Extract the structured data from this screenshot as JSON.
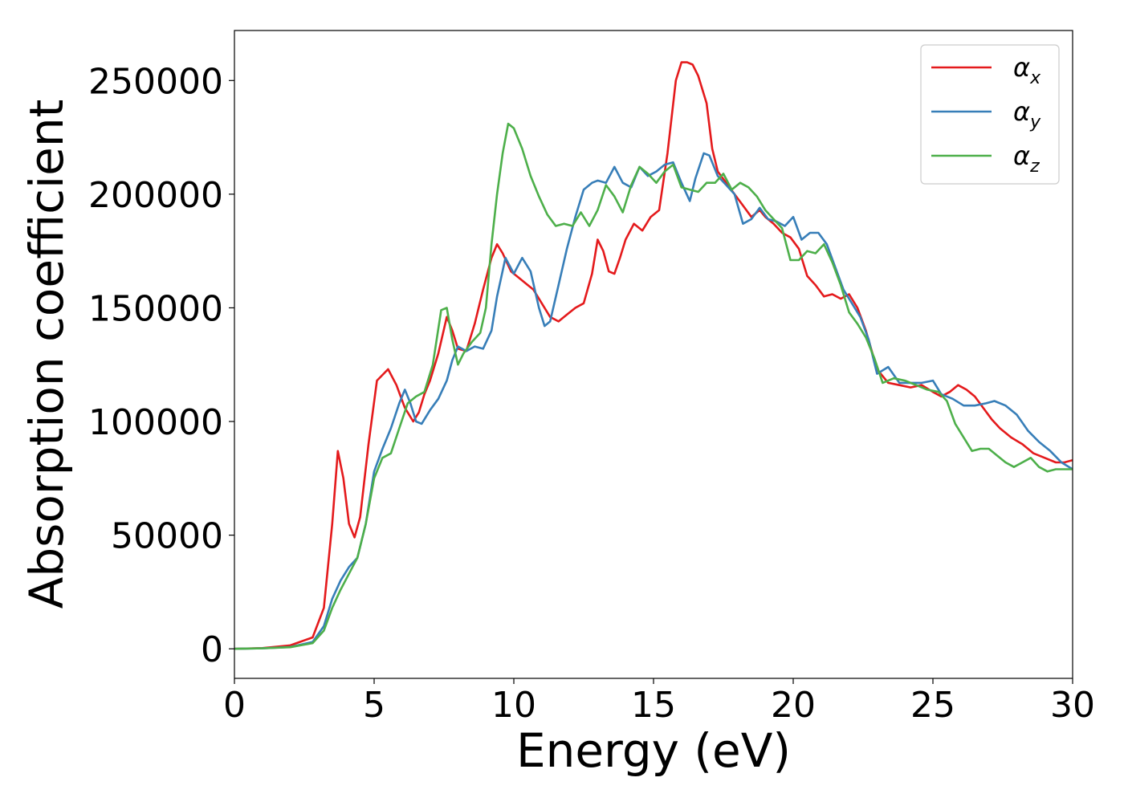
{
  "chart_data": {
    "type": "line",
    "title": "",
    "xlabel": "Energy (eV)",
    "ylabel": "Absorption coefficient",
    "xlim": [
      0,
      30
    ],
    "ylim": [
      -13000,
      272000
    ],
    "xticks": [
      0,
      5,
      10,
      15,
      20,
      25,
      30
    ],
    "xtick_labels": [
      "0",
      "5",
      "10",
      "15",
      "20",
      "25",
      "30"
    ],
    "yticks": [
      0,
      50000,
      100000,
      150000,
      200000,
      250000
    ],
    "ytick_labels": [
      "0",
      "50000",
      "100000",
      "150000",
      "200000",
      "250000"
    ],
    "grid": false,
    "legend_position": "top-right",
    "series": [
      {
        "name": "αx",
        "symbol": "α",
        "subscript": "x",
        "color": "#e41a1c",
        "x": [
          0,
          1,
          2,
          2.8,
          3.2,
          3.5,
          3.7,
          3.9,
          4.1,
          4.3,
          4.5,
          4.8,
          5.1,
          5.5,
          5.8,
          6.1,
          6.4,
          6.6,
          6.8,
          7.0,
          7.3,
          7.6,
          7.8,
          8.0,
          8.3,
          8.6,
          8.9,
          9.2,
          9.4,
          9.6,
          9.9,
          10.2,
          10.5,
          10.7,
          11.0,
          11.3,
          11.6,
          11.9,
          12.2,
          12.5,
          12.8,
          13.0,
          13.2,
          13.4,
          13.6,
          13.8,
          14.0,
          14.3,
          14.6,
          14.9,
          15.2,
          15.5,
          15.8,
          16.0,
          16.2,
          16.4,
          16.6,
          16.9,
          17.1,
          17.3,
          17.6,
          17.9,
          18.2,
          18.5,
          18.8,
          19.0,
          19.3,
          19.6,
          19.9,
          20.2,
          20.5,
          20.8,
          21.1,
          21.4,
          21.7,
          22.0,
          22.3,
          22.6,
          23.0,
          23.4,
          23.8,
          24.2,
          24.6,
          25.0,
          25.3,
          25.6,
          25.9,
          26.2,
          26.5,
          26.8,
          27.1,
          27.4,
          27.8,
          28.2,
          28.6,
          29.0,
          29.4,
          29.7,
          30.0
        ],
        "y": [
          0,
          300,
          1500,
          5000,
          18000,
          55000,
          87000,
          75000,
          55000,
          49000,
          58000,
          90000,
          118000,
          123000,
          116000,
          106000,
          100000,
          104000,
          112000,
          118000,
          130000,
          146000,
          140000,
          132000,
          131000,
          143000,
          158000,
          172000,
          178000,
          174000,
          166000,
          163000,
          160000,
          158000,
          152000,
          146000,
          144000,
          147000,
          150000,
          152000,
          165000,
          180000,
          175000,
          166000,
          165000,
          172000,
          180000,
          187000,
          184000,
          190000,
          193000,
          218000,
          250000,
          258000,
          258000,
          257000,
          252000,
          240000,
          220000,
          210000,
          205000,
          200000,
          195000,
          190000,
          193000,
          190000,
          187000,
          183000,
          181000,
          176000,
          164000,
          160000,
          155000,
          156000,
          154000,
          156000,
          150000,
          140000,
          123000,
          117000,
          116000,
          115000,
          116000,
          113000,
          111000,
          113000,
          116000,
          114000,
          111000,
          106000,
          101000,
          97000,
          93000,
          90000,
          86000,
          84000,
          82000,
          82000,
          83000
        ]
      },
      {
        "name": "αy",
        "symbol": "α",
        "subscript": "y",
        "color": "#377eb8",
        "x": [
          0,
          1,
          2,
          2.8,
          3.2,
          3.5,
          3.8,
          4.1,
          4.4,
          4.7,
          5.0,
          5.3,
          5.6,
          5.9,
          6.1,
          6.3,
          6.5,
          6.7,
          7.0,
          7.3,
          7.6,
          7.8,
          8.0,
          8.3,
          8.6,
          8.9,
          9.2,
          9.4,
          9.7,
          10.0,
          10.3,
          10.6,
          10.9,
          11.1,
          11.3,
          11.6,
          11.9,
          12.2,
          12.5,
          12.8,
          13.0,
          13.3,
          13.6,
          13.9,
          14.2,
          14.5,
          14.8,
          15.1,
          15.4,
          15.7,
          16.0,
          16.3,
          16.5,
          16.8,
          17.0,
          17.3,
          17.6,
          17.9,
          18.2,
          18.5,
          18.8,
          19.1,
          19.4,
          19.7,
          20.0,
          20.3,
          20.6,
          20.9,
          21.2,
          21.5,
          21.8,
          22.1,
          22.4,
          22.7,
          23.0,
          23.4,
          23.8,
          24.2,
          24.6,
          25.0,
          25.3,
          25.7,
          26.1,
          26.5,
          26.9,
          27.2,
          27.6,
          28.0,
          28.4,
          28.8,
          29.2,
          29.6,
          30.0
        ],
        "y": [
          0,
          200,
          800,
          3000,
          10000,
          22000,
          30000,
          36000,
          40000,
          55000,
          78000,
          88000,
          97000,
          108000,
          114000,
          108000,
          100000,
          99000,
          105000,
          110000,
          118000,
          127000,
          133000,
          131000,
          133000,
          132000,
          140000,
          155000,
          172000,
          165000,
          172000,
          166000,
          150000,
          142000,
          144000,
          160000,
          176000,
          190000,
          202000,
          205000,
          206000,
          205000,
          212000,
          205000,
          203000,
          212000,
          208000,
          210000,
          213000,
          214000,
          205000,
          197000,
          207000,
          218000,
          217000,
          208000,
          204000,
          200000,
          187000,
          189000,
          194000,
          189000,
          188000,
          186000,
          190000,
          180000,
          183000,
          183000,
          178000,
          168000,
          158000,
          152000,
          146000,
          136000,
          121000,
          124000,
          117000,
          117000,
          117000,
          118000,
          112000,
          110000,
          107000,
          107000,
          108000,
          109000,
          107000,
          103000,
          96000,
          91000,
          87000,
          82000,
          79000
        ]
      },
      {
        "name": "αz",
        "symbol": "α",
        "subscript": "z",
        "color": "#4daf4a",
        "x": [
          0,
          1,
          2,
          2.8,
          3.2,
          3.5,
          3.8,
          4.1,
          4.4,
          4.7,
          5.0,
          5.3,
          5.6,
          5.9,
          6.2,
          6.5,
          6.8,
          7.1,
          7.4,
          7.6,
          7.8,
          8.0,
          8.2,
          8.5,
          8.8,
          9.0,
          9.2,
          9.4,
          9.6,
          9.8,
          10.0,
          10.3,
          10.6,
          10.9,
          11.2,
          11.5,
          11.8,
          12.1,
          12.4,
          12.7,
          13.0,
          13.3,
          13.6,
          13.9,
          14.2,
          14.5,
          14.8,
          15.1,
          15.4,
          15.7,
          16.0,
          16.3,
          16.6,
          16.9,
          17.2,
          17.5,
          17.8,
          18.1,
          18.4,
          18.7,
          19.0,
          19.3,
          19.6,
          19.9,
          20.2,
          20.5,
          20.8,
          21.1,
          21.4,
          21.7,
          22.0,
          22.3,
          22.6,
          22.9,
          23.2,
          23.6,
          24.0,
          24.4,
          24.8,
          25.2,
          25.5,
          25.8,
          26.1,
          26.4,
          26.7,
          27.0,
          27.3,
          27.6,
          27.9,
          28.2,
          28.5,
          28.8,
          29.1,
          29.4,
          29.7,
          30.0
        ],
        "y": [
          0,
          200,
          700,
          2500,
          8000,
          18000,
          26000,
          33000,
          40000,
          55000,
          75000,
          84000,
          86000,
          97000,
          108000,
          111000,
          113000,
          125000,
          149000,
          150000,
          136000,
          125000,
          130000,
          135000,
          139000,
          150000,
          178000,
          200000,
          218000,
          231000,
          229000,
          220000,
          208000,
          199000,
          191000,
          186000,
          187000,
          186000,
          192000,
          186000,
          193000,
          204000,
          199000,
          192000,
          204000,
          212000,
          209000,
          205000,
          210000,
          213000,
          203000,
          202000,
          201000,
          205000,
          205000,
          209000,
          202000,
          205000,
          203000,
          199000,
          193000,
          189000,
          185000,
          171000,
          171000,
          175000,
          174000,
          178000,
          170000,
          160000,
          148000,
          143000,
          137000,
          128000,
          117000,
          119000,
          118000,
          116000,
          114000,
          113000,
          109000,
          99000,
          93000,
          87000,
          88000,
          88000,
          85000,
          82000,
          80000,
          82000,
          84000,
          80000,
          78000,
          79000,
          79000,
          79000
        ]
      }
    ]
  }
}
